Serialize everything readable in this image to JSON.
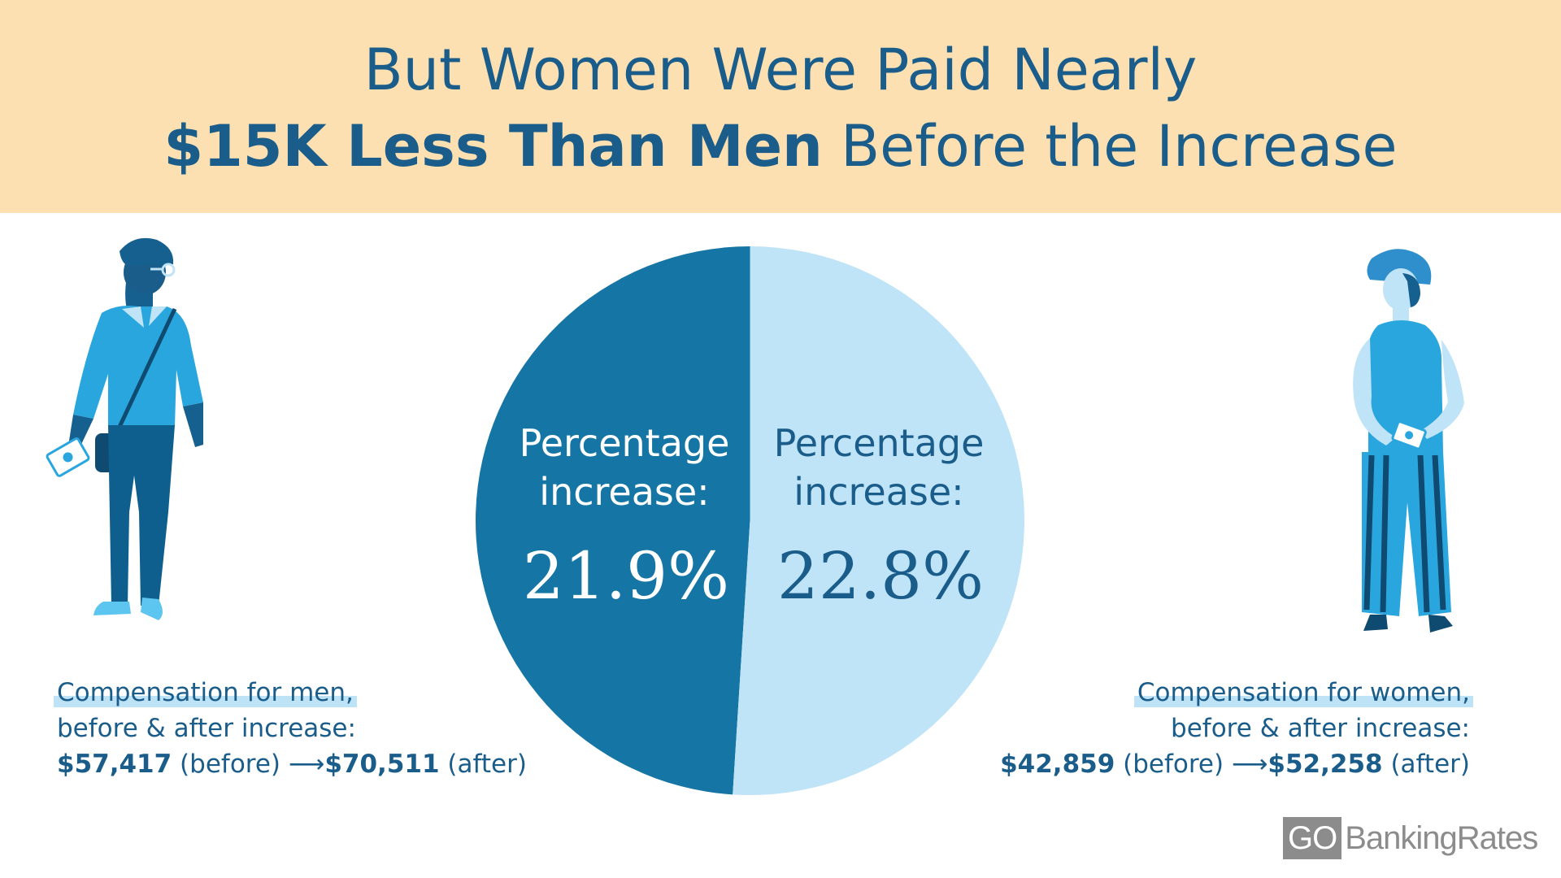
{
  "header": {
    "title_line1": "But Women Were Paid Nearly",
    "title_line2_bold": "$15K Less Than Men",
    "title_line2_rest": " Before the Increase"
  },
  "chart_data": {
    "type": "pie",
    "title": "",
    "slices": [
      {
        "label": "Percentage increase:",
        "value": 21.9,
        "display": "21.9%",
        "color": "#1575a5",
        "text_color": "#ffffff"
      },
      {
        "label": "Percentage increase:",
        "value": 22.8,
        "display": "22.8%",
        "color": "#bfe3f7",
        "text_color": "#1b5d8a"
      }
    ]
  },
  "men": {
    "caption_line1": "Compensation for men,",
    "caption_line2": "before & after increase:",
    "before_value": "$57,417",
    "before_label": " (before) ",
    "arrow": "⟶",
    "after_value": "$70,511",
    "after_label": " (after)"
  },
  "women": {
    "caption_line1": "Compensation for women,",
    "caption_line2": "before & after increase:",
    "before_value": "$42,859",
    "before_label": " (before) ",
    "arrow": "⟶",
    "after_value": "$52,258",
    "after_label": " (after)"
  },
  "logo": {
    "go": "GO",
    "rest": "BankingRates"
  },
  "colors": {
    "banner": "#fce0b2",
    "text_dark_blue": "#1b5d8a",
    "pie_dark": "#1575a5",
    "pie_light": "#bfe3f7",
    "logo_gray": "#8c8c8c"
  },
  "icons": [
    "man-illustration-icon",
    "woman-illustration-icon",
    "cash-icon"
  ]
}
